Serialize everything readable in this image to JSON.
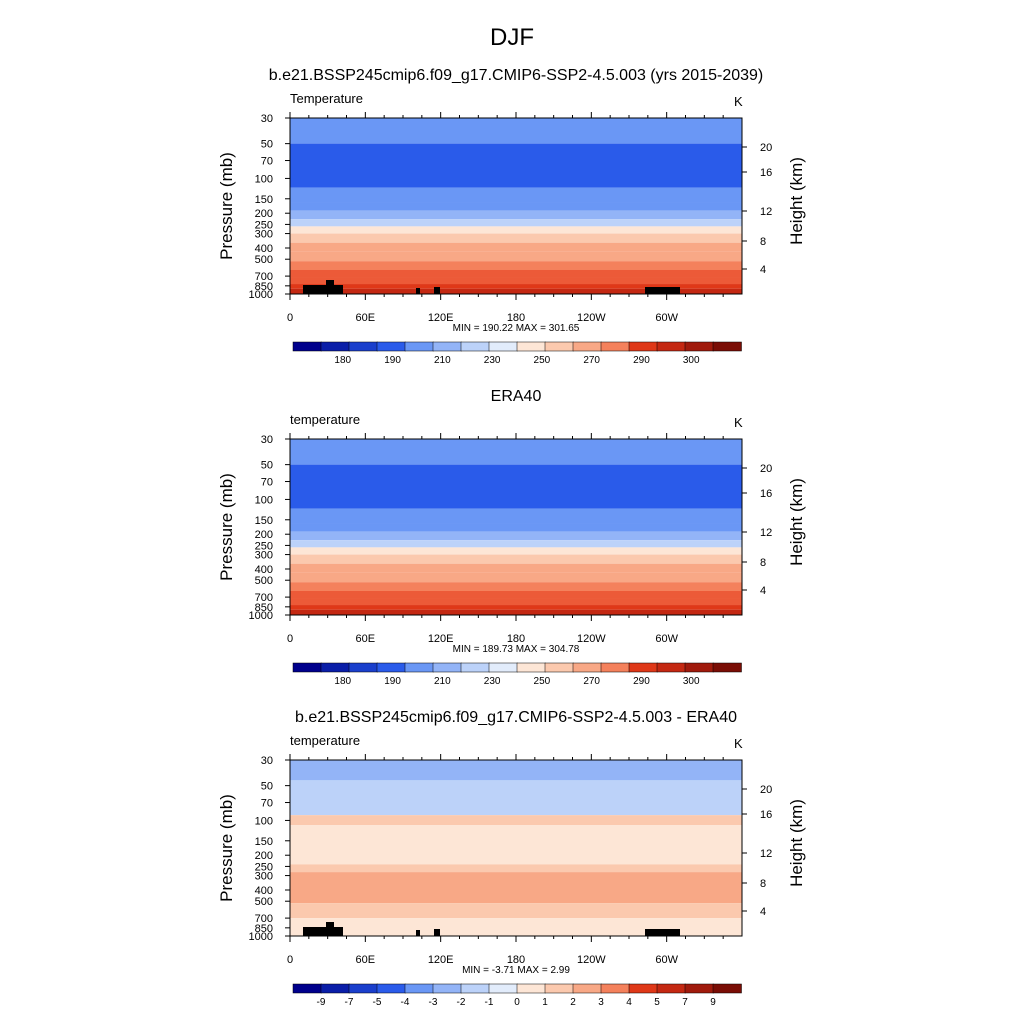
{
  "figure_title": "DJF",
  "colors": {
    "abs_levels_palette": [
      "#00008c",
      "#0a1ea8",
      "#1a3fcc",
      "#2a5bea",
      "#4478f2",
      "#6a97f5",
      "#93b4f7",
      "#bcd2f9",
      "#e2ecfb",
      "#fde6d6",
      "#fbc9ae",
      "#f8a886",
      "#f4815c",
      "#ec5a38",
      "#df3818",
      "#c42812",
      "#a01a0c",
      "#7a0d05"
    ],
    "diff_palette": [
      "#00008c",
      "#0a1ea8",
      "#1a3fcc",
      "#2a5bea",
      "#4478f2",
      "#6a97f5",
      "#93b4f7",
      "#bcd2f9",
      "#e2ecfb",
      "#fde6d6",
      "#fbc9ae",
      "#f8a886",
      "#f4815c",
      "#ec5a38",
      "#df3818",
      "#c42812",
      "#a01a0c",
      "#7a0d05"
    ]
  },
  "chart_data": [
    {
      "type": "heatmap",
      "title": "b.e21.BSSP245cmip6.f09_g17.CMIP6-SSP2-4.5.003 (yrs 2015-2039)",
      "left_label": "Temperature",
      "right_label": "K",
      "ylabel": "Pressure (mb)",
      "y2label": "Height (km)",
      "x_ticks": [
        "0",
        "60E",
        "120E",
        "180",
        "120W",
        "60W"
      ],
      "y_ticks": [
        "30",
        "50",
        "70",
        "100",
        "150",
        "200",
        "250",
        "300",
        "400",
        "500",
        "700",
        "850",
        "1000"
      ],
      "y2_ticks": [
        "20",
        "16",
        "12",
        "8",
        "4"
      ],
      "stats": "MIN = 190.22  MAX = 301.65",
      "colorbar_labels": [
        "180",
        "190",
        "210",
        "230",
        "250",
        "270",
        "290",
        "300"
      ],
      "bands": [
        {
          "p_top": 30,
          "p_bot": 50,
          "value": 210
        },
        {
          "p_top": 50,
          "p_bot": 120,
          "value": 200
        },
        {
          "p_top": 120,
          "p_bot": 160,
          "value": 210
        },
        {
          "p_top": 160,
          "p_bot": 190,
          "value": 215
        },
        {
          "p_top": 190,
          "p_bot": 225,
          "value": 220
        },
        {
          "p_top": 225,
          "p_bot": 260,
          "value": 230
        },
        {
          "p_top": 260,
          "p_bot": 300,
          "value": 240
        },
        {
          "p_top": 300,
          "p_bot": 360,
          "value": 250
        },
        {
          "p_top": 360,
          "p_bot": 430,
          "value": 255
        },
        {
          "p_top": 430,
          "p_bot": 520,
          "value": 260
        },
        {
          "p_top": 520,
          "p_bot": 620,
          "value": 265
        },
        {
          "p_top": 620,
          "p_bot": 720,
          "value": 270
        },
        {
          "p_top": 720,
          "p_bot": 820,
          "value": 275
        },
        {
          "p_top": 820,
          "p_bot": 900,
          "value": 280
        },
        {
          "p_top": 900,
          "p_bot": 1000,
          "value": 285
        }
      ],
      "terrain": true
    },
    {
      "type": "heatmap",
      "title": "ERA40",
      "left_label": "temperature",
      "right_label": "K",
      "ylabel": "Pressure (mb)",
      "y2label": "Height (km)",
      "x_ticks": [
        "0",
        "60E",
        "120E",
        "180",
        "120W",
        "60W"
      ],
      "y_ticks": [
        "30",
        "50",
        "70",
        "100",
        "150",
        "200",
        "250",
        "300",
        "400",
        "500",
        "700",
        "850",
        "1000"
      ],
      "y2_ticks": [
        "20",
        "16",
        "12",
        "8",
        "4"
      ],
      "stats": "MIN = 189.73  MAX = 304.78",
      "colorbar_labels": [
        "180",
        "190",
        "210",
        "230",
        "250",
        "270",
        "290",
        "300"
      ],
      "bands": [
        {
          "p_top": 30,
          "p_bot": 50,
          "value": 210
        },
        {
          "p_top": 50,
          "p_bot": 120,
          "value": 200
        },
        {
          "p_top": 120,
          "p_bot": 160,
          "value": 210
        },
        {
          "p_top": 160,
          "p_bot": 190,
          "value": 215
        },
        {
          "p_top": 190,
          "p_bot": 225,
          "value": 220
        },
        {
          "p_top": 225,
          "p_bot": 260,
          "value": 230
        },
        {
          "p_top": 260,
          "p_bot": 300,
          "value": 240
        },
        {
          "p_top": 300,
          "p_bot": 360,
          "value": 250
        },
        {
          "p_top": 360,
          "p_bot": 430,
          "value": 255
        },
        {
          "p_top": 430,
          "p_bot": 520,
          "value": 260
        },
        {
          "p_top": 520,
          "p_bot": 620,
          "value": 265
        },
        {
          "p_top": 620,
          "p_bot": 720,
          "value": 270
        },
        {
          "p_top": 720,
          "p_bot": 820,
          "value": 275
        },
        {
          "p_top": 820,
          "p_bot": 900,
          "value": 280
        },
        {
          "p_top": 900,
          "p_bot": 1000,
          "value": 285
        }
      ],
      "terrain": false
    },
    {
      "type": "heatmap",
      "title": "b.e21.BSSP245cmip6.f09_g17.CMIP6-SSP2-4.5.003 - ERA40",
      "left_label": "temperature",
      "right_label": "K",
      "ylabel": "Pressure (mb)",
      "y2label": "Height (km)",
      "x_ticks": [
        "0",
        "60E",
        "120E",
        "180",
        "120W",
        "60W"
      ],
      "y_ticks": [
        "30",
        "50",
        "70",
        "100",
        "150",
        "200",
        "250",
        "300",
        "400",
        "500",
        "700",
        "850",
        "1000"
      ],
      "y2_ticks": [
        "20",
        "16",
        "12",
        "8",
        "4"
      ],
      "stats": "MIN =  -3.71  MAX =   2.99",
      "colorbar_labels": [
        "-9",
        "-7",
        "-5",
        "-4",
        "-3",
        "-2",
        "-1",
        "0",
        "1",
        "2",
        "3",
        "4",
        "5",
        "7",
        "9"
      ],
      "bands": [
        {
          "p_top": 30,
          "p_bot": 45,
          "value": -3
        },
        {
          "p_top": 45,
          "p_bot": 90,
          "value": -2
        },
        {
          "p_top": 90,
          "p_bot": 110,
          "value": 1
        },
        {
          "p_top": 110,
          "p_bot": 240,
          "value": 0.5
        },
        {
          "p_top": 240,
          "p_bot": 280,
          "value": 1
        },
        {
          "p_top": 280,
          "p_bot": 520,
          "value": 2
        },
        {
          "p_top": 520,
          "p_bot": 700,
          "value": 1
        },
        {
          "p_top": 700,
          "p_bot": 1000,
          "value": 0.5
        }
      ],
      "terrain": true
    }
  ]
}
